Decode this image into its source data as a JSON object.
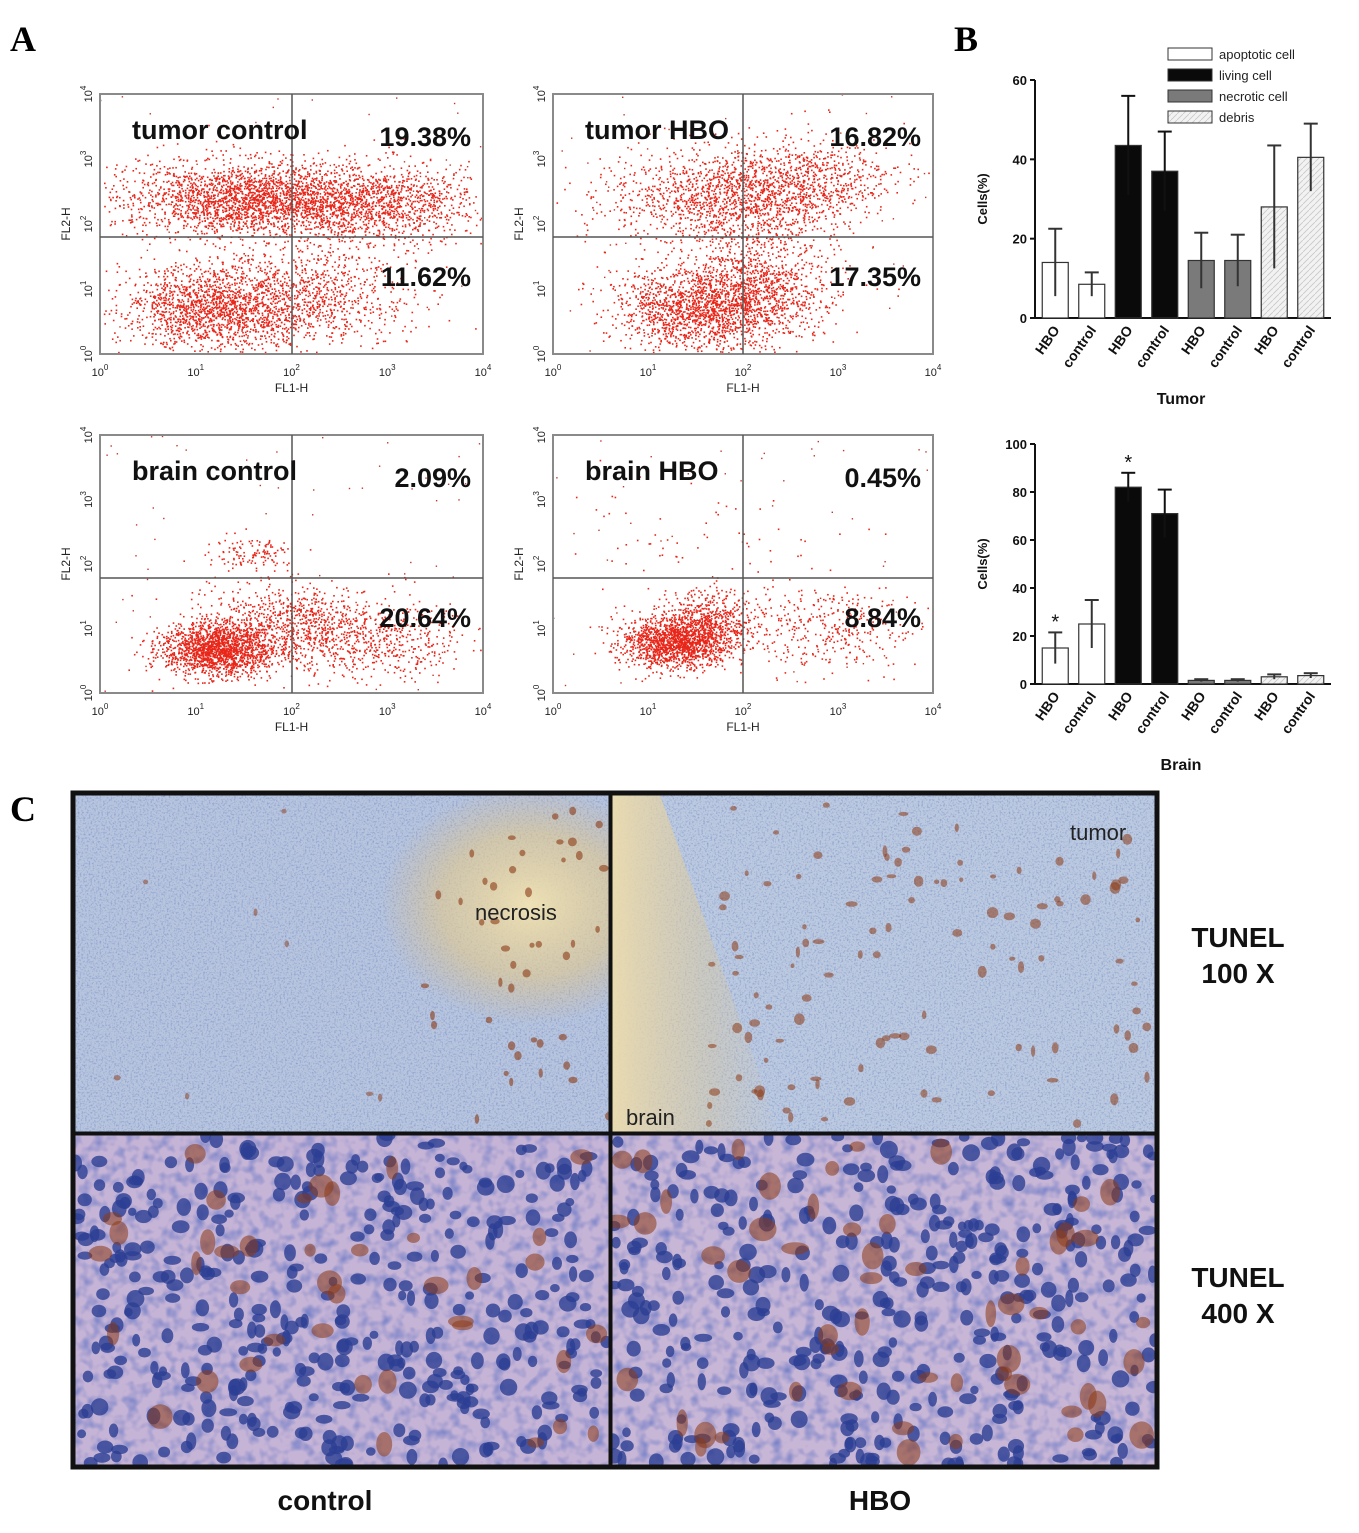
{
  "panels": {
    "A": "A",
    "B": "B",
    "C": "C"
  },
  "flow": {
    "x_axis_label": "FL1-H",
    "y_axis_label": "FL2-H",
    "ticks": [
      "10",
      "10",
      "10",
      "10",
      "10"
    ],
    "tick_exponents": [
      "0",
      "1",
      "2",
      "3",
      "4"
    ],
    "plots": [
      {
        "title": "tumor control",
        "upper_right": "19.38%",
        "lower_right": "11.62%"
      },
      {
        "title": "tumor HBO",
        "upper_right": "16.82%",
        "lower_right": "17.35%"
      },
      {
        "title": "brain control",
        "upper_right": "2.09%",
        "lower_right": "20.64%"
      },
      {
        "title": "brain HBO",
        "upper_right": "0.45%",
        "lower_right": "8.84%"
      }
    ],
    "dot_color": "#e8261a"
  },
  "chart_data": [
    {
      "type": "bar",
      "title": "",
      "xlabel": "Tumor",
      "ylabel": "Cells(%)",
      "ylim": [
        0,
        60
      ],
      "yticks": [
        "0",
        "20",
        "40",
        "60"
      ],
      "categories": [
        "HBO",
        "control",
        "HBO",
        "control",
        "HBO",
        "control",
        "HBO",
        "control"
      ],
      "groups": [
        "apoptotic cell",
        "living cell",
        "necrotic cell",
        "debris"
      ],
      "values": [
        14,
        8.5,
        43.5,
        37,
        14.5,
        14.5,
        28,
        40.5
      ],
      "errors": [
        8.5,
        3,
        12.5,
        10,
        7,
        6.5,
        15.5,
        8.5
      ],
      "significance": [
        "",
        "",
        "",
        "",
        "",
        "",
        "",
        ""
      ],
      "legend": [
        "apoptotic cell",
        "living cell",
        "necrotic cell",
        "debris"
      ],
      "legend_position": "top-right"
    },
    {
      "type": "bar",
      "title": "",
      "xlabel": "Brain",
      "ylabel": "Cells(%)",
      "ylim": [
        0,
        100
      ],
      "yticks": [
        "0",
        "20",
        "40",
        "60",
        "80",
        "100"
      ],
      "categories": [
        "HBO",
        "control",
        "HBO",
        "control",
        "HBO",
        "control",
        "HBO",
        "control"
      ],
      "groups": [
        "apoptotic cell",
        "living cell",
        "necrotic cell",
        "debris"
      ],
      "values": [
        15,
        25,
        82,
        71,
        1.5,
        1.5,
        3,
        3.5
      ],
      "errors": [
        6.5,
        10,
        6,
        10,
        0.5,
        0.5,
        1,
        1
      ],
      "significance": [
        "*",
        "",
        "*",
        "",
        "",
        "",
        "",
        ""
      ]
    }
  ],
  "bar_styles": {
    "apoptotic cell": "#ffffff",
    "living cell": "#0a0a0a",
    "necrotic cell": "#7a7a7a",
    "debris": "#eeeeee"
  },
  "micro": {
    "labels": {
      "necrosis": "necrosis",
      "tumor": "tumor",
      "brain": "brain"
    },
    "row_labels": [
      {
        "line1": "TUNEL",
        "line2": "100 X"
      },
      {
        "line1": "TUNEL",
        "line2": "400 X"
      }
    ],
    "col_labels": [
      "control",
      "HBO"
    ],
    "colors": {
      "background": "#b9c7de",
      "nuclei": "#2c3f94",
      "stain": "#8c3a16",
      "necrosis": "#e9d8a7"
    }
  }
}
